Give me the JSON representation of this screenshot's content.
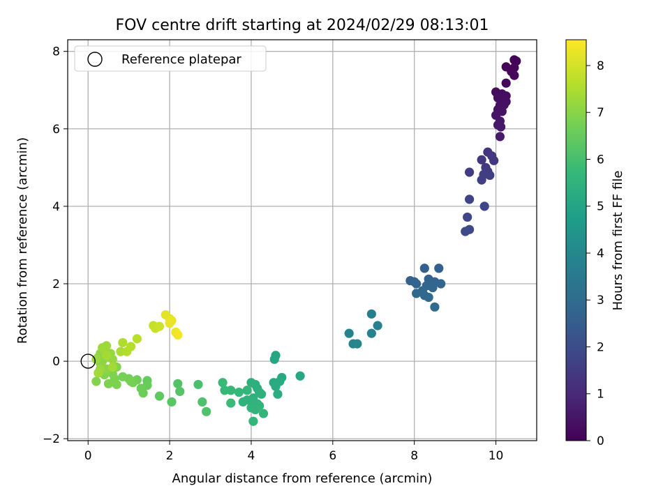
{
  "chart_data": {
    "type": "scatter",
    "title": "FOV centre drift starting at 2024/02/29 08:13:01",
    "xlabel": "Angular distance from reference (arcmin)",
    "ylabel": "Rotation from reference (arcmin)",
    "xlim": [
      -0.5,
      11
    ],
    "ylim": [
      -2.05,
      8.3
    ],
    "xticks": [
      0,
      2,
      4,
      6,
      8,
      10
    ],
    "yticks": [
      -2,
      0,
      2,
      4,
      6,
      8
    ],
    "grid": true,
    "legend": {
      "placement": "top-left",
      "entries": [
        {
          "label": "Reference platepar",
          "marker": "open-circle"
        }
      ]
    },
    "reference_point": {
      "x": 0,
      "y": 0
    },
    "colorbar": {
      "label": "Hours from first FF file",
      "range": [
        0,
        8.55
      ],
      "ticks": [
        0,
        1,
        2,
        3,
        4,
        5,
        6,
        7,
        8
      ],
      "colormap": "viridis"
    },
    "points": [
      {
        "x": 10.45,
        "y": 7.78,
        "t": 0.05
      },
      {
        "x": 10.5,
        "y": 7.75,
        "t": 0.08
      },
      {
        "x": 10.25,
        "y": 7.6,
        "t": 0.1
      },
      {
        "x": 10.45,
        "y": 7.58,
        "t": 0.12
      },
      {
        "x": 10.38,
        "y": 7.48,
        "t": 0.14
      },
      {
        "x": 10.45,
        "y": 7.38,
        "t": 0.16
      },
      {
        "x": 10.25,
        "y": 7.18,
        "t": 0.2
      },
      {
        "x": 10.0,
        "y": 6.95,
        "t": 0.25
      },
      {
        "x": 10.15,
        "y": 6.9,
        "t": 0.27
      },
      {
        "x": 10.25,
        "y": 6.85,
        "t": 0.3
      },
      {
        "x": 10.05,
        "y": 6.8,
        "t": 0.32
      },
      {
        "x": 10.15,
        "y": 6.75,
        "t": 0.34
      },
      {
        "x": 10.25,
        "y": 6.7,
        "t": 0.36
      },
      {
        "x": 10.1,
        "y": 6.6,
        "t": 0.38
      },
      {
        "x": 10.2,
        "y": 6.62,
        "t": 0.4
      },
      {
        "x": 10.05,
        "y": 6.5,
        "t": 0.42
      },
      {
        "x": 10.15,
        "y": 6.45,
        "t": 0.45
      },
      {
        "x": 10.0,
        "y": 6.35,
        "t": 0.48
      },
      {
        "x": 10.1,
        "y": 6.2,
        "t": 0.5
      },
      {
        "x": 10.05,
        "y": 6.1,
        "t": 0.52
      },
      {
        "x": 10.12,
        "y": 6.05,
        "t": 0.55
      },
      {
        "x": 10.1,
        "y": 5.8,
        "t": 0.6
      },
      {
        "x": 9.8,
        "y": 5.4,
        "t": 1.3
      },
      {
        "x": 9.9,
        "y": 5.3,
        "t": 1.35
      },
      {
        "x": 9.65,
        "y": 5.2,
        "t": 1.4
      },
      {
        "x": 9.95,
        "y": 5.18,
        "t": 1.42
      },
      {
        "x": 9.75,
        "y": 5.0,
        "t": 1.45
      },
      {
        "x": 9.8,
        "y": 4.9,
        "t": 1.5
      },
      {
        "x": 9.35,
        "y": 4.88,
        "t": 1.55
      },
      {
        "x": 9.7,
        "y": 4.82,
        "t": 1.57
      },
      {
        "x": 9.85,
        "y": 4.8,
        "t": 1.6
      },
      {
        "x": 9.65,
        "y": 4.68,
        "t": 1.62
      },
      {
        "x": 9.35,
        "y": 4.18,
        "t": 1.75
      },
      {
        "x": 9.72,
        "y": 4.0,
        "t": 1.8
      },
      {
        "x": 9.3,
        "y": 3.72,
        "t": 1.85
      },
      {
        "x": 9.35,
        "y": 3.4,
        "t": 1.9
      },
      {
        "x": 9.25,
        "y": 3.35,
        "t": 1.95
      },
      {
        "x": 8.25,
        "y": 2.4,
        "t": 2.6
      },
      {
        "x": 8.6,
        "y": 2.4,
        "t": 2.62
      },
      {
        "x": 8.35,
        "y": 2.12,
        "t": 2.65
      },
      {
        "x": 7.9,
        "y": 2.08,
        "t": 2.7
      },
      {
        "x": 8.0,
        "y": 2.05,
        "t": 2.72
      },
      {
        "x": 8.5,
        "y": 2.05,
        "t": 2.74
      },
      {
        "x": 8.05,
        "y": 2.0,
        "t": 2.76
      },
      {
        "x": 8.65,
        "y": 2.0,
        "t": 2.78
      },
      {
        "x": 8.3,
        "y": 1.95,
        "t": 2.8
      },
      {
        "x": 8.45,
        "y": 1.9,
        "t": 2.82
      },
      {
        "x": 8.2,
        "y": 1.82,
        "t": 2.84
      },
      {
        "x": 8.05,
        "y": 1.75,
        "t": 2.86
      },
      {
        "x": 8.25,
        "y": 1.7,
        "t": 2.88
      },
      {
        "x": 8.35,
        "y": 1.65,
        "t": 2.9
      },
      {
        "x": 8.5,
        "y": 1.4,
        "t": 2.95
      },
      {
        "x": 6.95,
        "y": 1.22,
        "t": 3.7
      },
      {
        "x": 7.1,
        "y": 0.92,
        "t": 3.75
      },
      {
        "x": 6.95,
        "y": 0.72,
        "t": 3.8
      },
      {
        "x": 6.4,
        "y": 0.72,
        "t": 3.85
      },
      {
        "x": 6.5,
        "y": 0.45,
        "t": 3.9
      },
      {
        "x": 6.6,
        "y": 0.45,
        "t": 3.95
      },
      {
        "x": 4.6,
        "y": 0.15,
        "t": 5.0
      },
      {
        "x": 4.57,
        "y": 0.05,
        "t": 5.02
      },
      {
        "x": 5.2,
        "y": -0.38,
        "t": 5.1
      },
      {
        "x": 4.75,
        "y": -0.42,
        "t": 5.15
      },
      {
        "x": 4.55,
        "y": -0.55,
        "t": 5.2
      },
      {
        "x": 4.7,
        "y": -0.52,
        "t": 5.22
      },
      {
        "x": 4.6,
        "y": -0.65,
        "t": 5.25
      },
      {
        "x": 4.65,
        "y": -0.85,
        "t": 5.3
      },
      {
        "x": 4.1,
        "y": -0.6,
        "t": 5.35
      },
      {
        "x": 4.0,
        "y": -0.55,
        "t": 5.38
      },
      {
        "x": 4.15,
        "y": -0.7,
        "t": 5.4
      },
      {
        "x": 4.2,
        "y": -0.8,
        "t": 5.42
      },
      {
        "x": 4.25,
        "y": -0.85,
        "t": 5.44
      },
      {
        "x": 4.05,
        "y": -0.95,
        "t": 5.46
      },
      {
        "x": 3.9,
        "y": -1.0,
        "t": 5.48
      },
      {
        "x": 3.8,
        "y": -1.05,
        "t": 5.5
      },
      {
        "x": 4.05,
        "y": -1.05,
        "t": 5.52
      },
      {
        "x": 4.15,
        "y": -1.1,
        "t": 5.54
      },
      {
        "x": 4.2,
        "y": -1.15,
        "t": 5.56
      },
      {
        "x": 4.0,
        "y": -1.2,
        "t": 5.58
      },
      {
        "x": 4.1,
        "y": -1.25,
        "t": 5.6
      },
      {
        "x": 4.3,
        "y": -1.35,
        "t": 5.62
      },
      {
        "x": 4.05,
        "y": -1.55,
        "t": 5.65
      },
      {
        "x": 3.9,
        "y": -0.75,
        "t": 5.67
      },
      {
        "x": 3.7,
        "y": -0.8,
        "t": 5.7
      },
      {
        "x": 3.5,
        "y": -0.75,
        "t": 5.72
      },
      {
        "x": 3.35,
        "y": -0.75,
        "t": 5.75
      },
      {
        "x": 3.3,
        "y": -0.55,
        "t": 5.78
      },
      {
        "x": 3.5,
        "y": -1.08,
        "t": 5.8
      },
      {
        "x": 2.7,
        "y": -0.6,
        "t": 6.05
      },
      {
        "x": 2.8,
        "y": -1.05,
        "t": 6.1
      },
      {
        "x": 2.9,
        "y": -1.3,
        "t": 6.15
      },
      {
        "x": 2.2,
        "y": -0.58,
        "t": 6.2
      },
      {
        "x": 2.25,
        "y": -0.78,
        "t": 6.25
      },
      {
        "x": 2.05,
        "y": -1.05,
        "t": 6.3
      },
      {
        "x": 1.75,
        "y": -0.9,
        "t": 6.4
      },
      {
        "x": 1.45,
        "y": -0.5,
        "t": 6.5
      },
      {
        "x": 1.45,
        "y": -0.62,
        "t": 6.55
      },
      {
        "x": 1.3,
        "y": -0.7,
        "t": 6.6
      },
      {
        "x": 1.35,
        "y": -0.82,
        "t": 6.62
      },
      {
        "x": 1.2,
        "y": -0.48,
        "t": 6.65
      },
      {
        "x": 1.0,
        "y": -0.45,
        "t": 6.7
      },
      {
        "x": 1.1,
        "y": -0.55,
        "t": 6.72
      },
      {
        "x": 1.05,
        "y": -0.52,
        "t": 6.74
      },
      {
        "x": 0.85,
        "y": -0.4,
        "t": 6.76
      },
      {
        "x": 0.65,
        "y": -0.45,
        "t": 6.8
      },
      {
        "x": 0.7,
        "y": -0.6,
        "t": 6.82
      },
      {
        "x": 0.5,
        "y": -0.58,
        "t": 6.85
      },
      {
        "x": 0.6,
        "y": -0.32,
        "t": 6.88
      },
      {
        "x": 0.2,
        "y": -0.52,
        "t": 6.9
      },
      {
        "x": 0.4,
        "y": -0.35,
        "t": 6.92
      },
      {
        "x": 0.7,
        "y": -0.15,
        "t": 6.95
      },
      {
        "x": 0.3,
        "y": -0.05,
        "t": 7.0
      },
      {
        "x": 0.25,
        "y": 0.1,
        "t": 7.02
      },
      {
        "x": 0.35,
        "y": 0.0,
        "t": 7.05
      },
      {
        "x": 0.45,
        "y": -0.2,
        "t": 7.08
      },
      {
        "x": 0.3,
        "y": 0.2,
        "t": 7.1
      },
      {
        "x": 0.5,
        "y": 0.1,
        "t": 7.12
      },
      {
        "x": 0.4,
        "y": 0.3,
        "t": 7.15
      },
      {
        "x": 0.6,
        "y": 0.05,
        "t": 7.18
      },
      {
        "x": 0.55,
        "y": 0.2,
        "t": 7.2
      },
      {
        "x": 0.2,
        "y": 0.05,
        "t": 7.22
      },
      {
        "x": 0.3,
        "y": -0.2,
        "t": 7.25
      },
      {
        "x": 0.45,
        "y": 0.4,
        "t": 7.28
      },
      {
        "x": 0.35,
        "y": 0.35,
        "t": 7.3
      },
      {
        "x": 0.25,
        "y": -0.3,
        "t": 7.32
      },
      {
        "x": 0.6,
        "y": -0.15,
        "t": 7.35
      },
      {
        "x": 0.45,
        "y": 0.15,
        "t": 7.38
      },
      {
        "x": 0.8,
        "y": 0.25,
        "t": 7.45
      },
      {
        "x": 0.85,
        "y": 0.48,
        "t": 7.5
      },
      {
        "x": 0.95,
        "y": 0.25,
        "t": 7.55
      },
      {
        "x": 1.05,
        "y": 0.38,
        "t": 7.6
      },
      {
        "x": 1.2,
        "y": 0.58,
        "t": 7.65
      },
      {
        "x": 1.6,
        "y": 0.92,
        "t": 7.8
      },
      {
        "x": 1.65,
        "y": 0.85,
        "t": 7.85
      },
      {
        "x": 1.75,
        "y": 0.9,
        "t": 7.9
      },
      {
        "x": 1.9,
        "y": 1.2,
        "t": 8.2
      },
      {
        "x": 2.0,
        "y": 1.1,
        "t": 8.25
      },
      {
        "x": 2.05,
        "y": 1.05,
        "t": 8.28
      },
      {
        "x": 2.0,
        "y": 0.98,
        "t": 8.3
      },
      {
        "x": 2.15,
        "y": 0.75,
        "t": 8.35
      },
      {
        "x": 2.2,
        "y": 0.68,
        "t": 8.4
      }
    ]
  },
  "colors": {
    "grid": "#b0b0b0",
    "axes": "#000000",
    "viridis_stops": [
      "#440154",
      "#482878",
      "#3e4989",
      "#31688e",
      "#26828e",
      "#1f9e89",
      "#35b779",
      "#6ece58",
      "#b5de2b",
      "#fde725"
    ]
  }
}
